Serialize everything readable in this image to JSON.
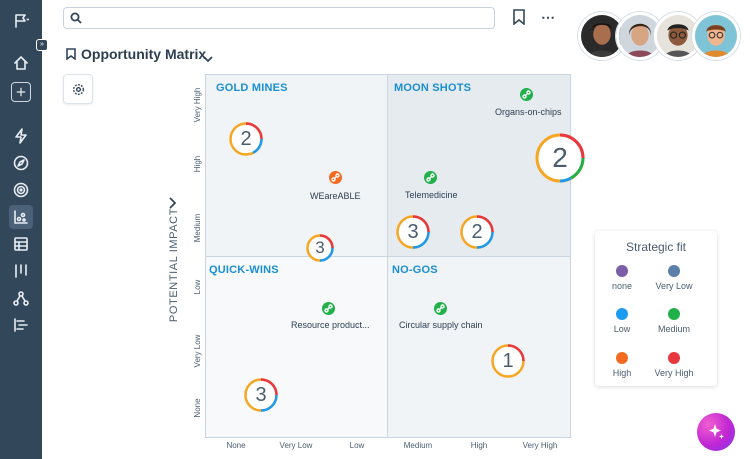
{
  "search": {
    "placeholder": ""
  },
  "page": {
    "title": "Opportunity Matrix"
  },
  "matrix": {
    "y_axis_title": "POTENTIAL IMPACT",
    "y_ticks": [
      "None",
      "Very Low",
      "Low",
      "Medium",
      "High",
      "Very High"
    ],
    "x_ticks": [
      "None",
      "Very Low",
      "Low",
      "Medium",
      "High",
      "Very High"
    ],
    "quadrants": {
      "gold_mines": "GOLD MINES",
      "moon_shots": "MOON SHOTS",
      "quick_wins": "QUICK-WINS",
      "no_gos": "NO-GOS"
    },
    "opportunities": [
      {
        "label": "Organs-on-chips",
        "fit": "Medium",
        "color": "#22b04b"
      },
      {
        "label": "WEareABLE",
        "fit": "High",
        "color": "#f36b21"
      },
      {
        "label": "Telemedicine",
        "fit": "Medium",
        "color": "#22b04b"
      },
      {
        "label": "Resource product...",
        "fit": "Medium",
        "color": "#22b04b"
      },
      {
        "label": "Circular supply chain",
        "fit": "Medium",
        "color": "#22b04b"
      }
    ],
    "clusters": [
      "2",
      "2",
      "3",
      "3",
      "2",
      "1",
      "3"
    ]
  },
  "legend": {
    "title": "Strategic fit",
    "items": [
      {
        "label": "none",
        "color": "#7b5ea7"
      },
      {
        "label": "Very Low",
        "color": "#5b7fa6"
      },
      {
        "label": "Low",
        "color": "#1d9bf0"
      },
      {
        "label": "Medium",
        "color": "#22b04b"
      },
      {
        "label": "High",
        "color": "#f36b21"
      },
      {
        "label": "Very High",
        "color": "#e8373e"
      }
    ]
  },
  "colors": {
    "sidebar": "#33475b",
    "quadrant_label": "#1a8fd1",
    "ring_orange": "#f5a623",
    "ring_blue": "#1d9bf0",
    "ring_green": "#22b04b",
    "ring_red": "#e8373e"
  },
  "icons": {
    "sidebar": [
      "flag-icon",
      "home-icon",
      "plus-icon",
      "lightning-icon",
      "compass-icon",
      "target-icon",
      "matrix-chart-icon",
      "table-icon",
      "kanban-icon",
      "hierarchy-icon",
      "gantt-icon"
    ],
    "top": [
      "search-icon",
      "bookmark-icon",
      "more-icon"
    ],
    "ai": "sparkle-icon"
  }
}
